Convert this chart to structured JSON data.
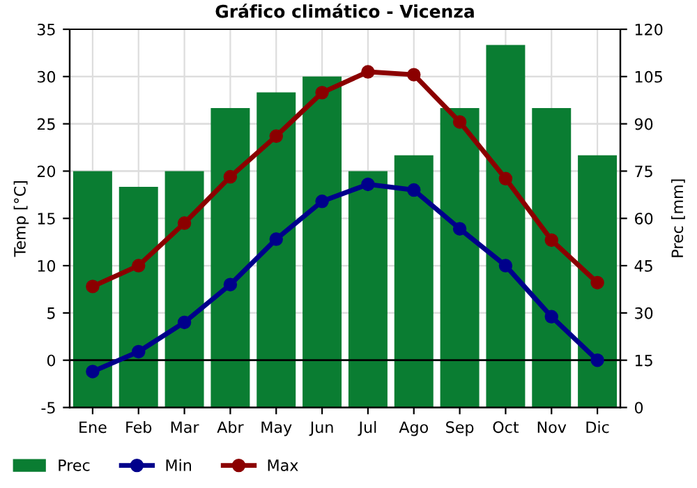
{
  "chart_data": {
    "type": "line",
    "title": "Gráfico climático - Vicenza",
    "ylabel": "Temp [°C]",
    "y2label": "Prec [mm]",
    "categories": [
      "Ene",
      "Feb",
      "Mar",
      "Abr",
      "May",
      "Jun",
      "Jul",
      "Ago",
      "Sep",
      "Oct",
      "Nov",
      "Dic"
    ],
    "series": [
      {
        "name": "Prec",
        "type": "bar",
        "axis": "y2",
        "color": "#0a7d32",
        "values": [
          75,
          70,
          75,
          95,
          100,
          105,
          75,
          80,
          95,
          115,
          95,
          80
        ]
      },
      {
        "name": "Min",
        "color": "#00008b",
        "values": [
          -1.2,
          0.9,
          4.0,
          8.0,
          12.8,
          16.8,
          18.6,
          18.0,
          13.9,
          10.0,
          4.6,
          0.0
        ]
      },
      {
        "name": "Max",
        "color": "#8b0000",
        "values": [
          7.8,
          10.0,
          14.5,
          19.4,
          23.7,
          28.3,
          30.5,
          30.2,
          25.2,
          19.2,
          12.7,
          8.2
        ]
      }
    ],
    "ylim": [
      -5,
      35
    ],
    "yticks": [
      -5,
      0,
      5,
      10,
      15,
      20,
      25,
      30,
      35
    ],
    "y2lim": [
      0,
      120
    ],
    "y2ticks": [
      0,
      15,
      30,
      45,
      60,
      75,
      90,
      105,
      120
    ],
    "ref_lines": [
      {
        "axis": "y",
        "value": 0,
        "color": "#000000"
      }
    ],
    "grid": true,
    "legend": "bottom",
    "marker": "circle",
    "line_style": "solid"
  }
}
